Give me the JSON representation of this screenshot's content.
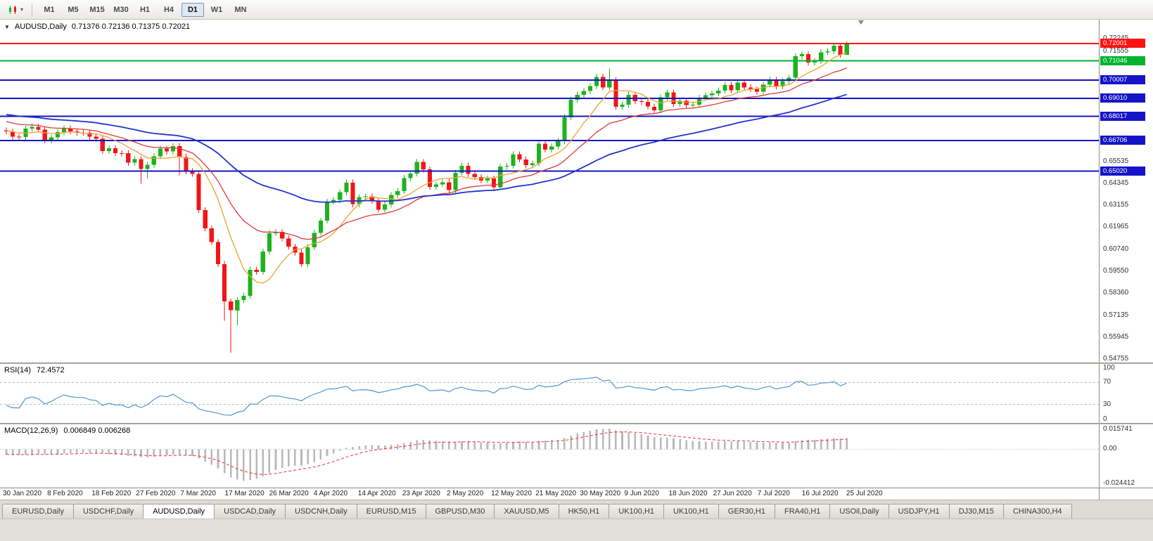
{
  "toolbar": {
    "timeframes": [
      "M1",
      "M5",
      "M15",
      "M30",
      "H1",
      "H4",
      "D1",
      "W1",
      "MN"
    ],
    "active_timeframe": "D1"
  },
  "chart": {
    "symbol_period": "AUDUSD,Daily",
    "ohlc": "0.71376 0.72136 0.71375 0.72021"
  },
  "rsi": {
    "label": "RSI(14)",
    "value": "72.4572",
    "period": 14,
    "levels": [
      70,
      30
    ],
    "axis_labels": [
      "100",
      "70",
      "30",
      "0"
    ],
    "color": "#4f97d7"
  },
  "macd": {
    "label": "MACD(12,26,9)",
    "values": "0.006849 0.006268",
    "fast": 12,
    "slow": 26,
    "signal": 9,
    "axis_top_label": "0.015741",
    "axis_zero_label": "0.00",
    "axis_bottom_label": "-0.024412",
    "hist_color": "#b8b8b8",
    "signal_color": "#ff2a2a"
  },
  "time_axis": {
    "labels": [
      "30 Jan 2020",
      "8 Feb 2020",
      "18 Feb 2020",
      "27 Feb 2020",
      "7 Mar 2020",
      "17 Mar 2020",
      "26 Mar 2020",
      "4 Apr 2020",
      "14 Apr 2020",
      "23 Apr 2020",
      "2 May 2020",
      "12 May 2020",
      "21 May 2020",
      "30 May 2020",
      "9 Jun 2020",
      "18 Jun 2020",
      "27 Jun 2020",
      "7 Jul 2020",
      "16 Jul 2020",
      "25 Jul 2020"
    ]
  },
  "tabs": {
    "items": [
      "EURUSD,Daily",
      "USDCHF,Daily",
      "AUDUSD,Daily",
      "USDCAD,Daily",
      "USDCNH,Daily",
      "EURUSD,M15",
      "GBPUSD,M30",
      "XAUUSD,M5",
      "HK50,H1",
      "UK100,H1",
      "UK100,H1",
      "GER30,H1",
      "FRA40,H1",
      "USOil,Daily",
      "USDJPY,H1",
      "DJ30,M15",
      "CHINA300,H4"
    ],
    "active_index": 2
  },
  "chart_data": {
    "type": "candlestick",
    "title": "AUDUSD,Daily",
    "current_bar": {
      "open": 0.71376,
      "high": 0.72136,
      "low": 0.71375,
      "close": 0.72021
    },
    "price_range": {
      "top": 0.733,
      "bottom": 0.5457
    },
    "price_ticks": [
      "0.72245",
      "0.71555",
      "0.70865",
      "0.65535",
      "0.64345",
      "0.63155",
      "0.61965",
      "0.60740",
      "0.59550",
      "0.58360",
      "0.57135",
      "0.55945",
      "0.54755"
    ],
    "horizontal_lines": [
      {
        "price": 0.72001,
        "label": "0.72001",
        "color": "#ff1414",
        "width": 2
      },
      {
        "price": 0.71046,
        "label": "0.71046",
        "color": "#00b42c",
        "width": 2
      },
      {
        "price": 0.70007,
        "label": "0.70007",
        "color": "#1414c8",
        "width": 2
      },
      {
        "price": 0.6901,
        "label": "0.69010",
        "color": "#1414c8",
        "width": 2
      },
      {
        "price": 0.68017,
        "label": "0.68017",
        "color": "#1414c8",
        "width": 2
      },
      {
        "price": 0.66706,
        "label": "0.66706",
        "color": "#1414c8",
        "width": 2
      },
      {
        "price": 0.6502,
        "label": "0.65020",
        "color": "#1414c8",
        "width": 2
      }
    ],
    "candle_colors": {
      "up": "#1db31d",
      "down": "#f21515"
    },
    "moving_averages": [
      {
        "name": "fast-ma",
        "period": 8,
        "method": "sma",
        "color": "#f0a030",
        "width": 1.3
      },
      {
        "name": "mid-ma",
        "period": 20,
        "method": "ema",
        "color": "#e03838",
        "width": 1.3
      },
      {
        "name": "slow-ma",
        "period": 50,
        "method": "ema",
        "color": "#2433cc",
        "width": 1.8
      }
    ],
    "pre_closes": [
      0.68,
      0.6815,
      0.6808,
      0.6812,
      0.682,
      0.6818,
      0.683,
      0.6825,
      0.684,
      0.6835,
      0.685,
      0.6845,
      0.686,
      0.687,
      0.6865,
      0.688,
      0.6875,
      0.689,
      0.69,
      0.691,
      0.692,
      0.6915,
      0.693,
      0.694,
      0.695,
      0.6945,
      0.6935,
      0.694,
      0.6925,
      0.691,
      0.6895,
      0.688,
      0.687,
      0.685,
      0.684,
      0.683,
      0.682,
      0.6805,
      0.679,
      0.678,
      0.6795,
      0.6785,
      0.677,
      0.675,
      0.674,
      0.6735,
      0.672,
      0.671,
      0.67,
      0.6725
    ],
    "closes": [
      0.672,
      0.669,
      0.6688,
      0.6735,
      0.6745,
      0.673,
      0.667,
      0.6687,
      0.6715,
      0.6737,
      0.672,
      0.6713,
      0.6712,
      0.669,
      0.6679,
      0.6612,
      0.6627,
      0.6601,
      0.66,
      0.6548,
      0.6568,
      0.6515,
      0.6537,
      0.6584,
      0.6625,
      0.661,
      0.664,
      0.658,
      0.6502,
      0.6488,
      0.629,
      0.619,
      0.6115,
      0.5995,
      0.579,
      0.5742,
      0.5798,
      0.5822,
      0.5964,
      0.5952,
      0.6063,
      0.6163,
      0.617,
      0.6135,
      0.609,
      0.6058,
      0.5995,
      0.6087,
      0.6166,
      0.6232,
      0.6336,
      0.6345,
      0.6387,
      0.644,
      0.6322,
      0.636,
      0.6365,
      0.634,
      0.6292,
      0.632,
      0.6372,
      0.6394,
      0.6465,
      0.649,
      0.6552,
      0.6512,
      0.6417,
      0.643,
      0.6442,
      0.64,
      0.6494,
      0.6532,
      0.6487,
      0.647,
      0.6452,
      0.6462,
      0.6415,
      0.6527,
      0.6532,
      0.6595,
      0.6566,
      0.6535,
      0.6545,
      0.6652,
      0.662,
      0.6638,
      0.6667,
      0.6797,
      0.6893,
      0.692,
      0.694,
      0.6968,
      0.7018,
      0.696,
      0.7,
      0.6855,
      0.6865,
      0.692,
      0.6885,
      0.688,
      0.6855,
      0.6835,
      0.6905,
      0.6932,
      0.687,
      0.6886,
      0.6864,
      0.6866,
      0.6903,
      0.6917,
      0.6927,
      0.6943,
      0.6974,
      0.6944,
      0.6986,
      0.696,
      0.695,
      0.6937,
      0.6975,
      0.7002,
      0.6966,
      0.6995,
      0.7013,
      0.713,
      0.7142,
      0.7095,
      0.7105,
      0.7152,
      0.7158,
      0.7188,
      0.7138,
      0.72021
    ],
    "default_wick": 0.0016,
    "wick_overrides": {
      "21": {
        "l": 0.6433
      },
      "22": {
        "l": 0.646
      },
      "27": {
        "l": 0.648
      },
      "34": {
        "l": 0.5685
      },
      "35": {
        "l": 0.551
      },
      "36": {
        "l": 0.566
      },
      "94": {
        "h": 0.7064
      },
      "131": {
        "h": 0.72136,
        "l": 0.71375
      }
    }
  }
}
